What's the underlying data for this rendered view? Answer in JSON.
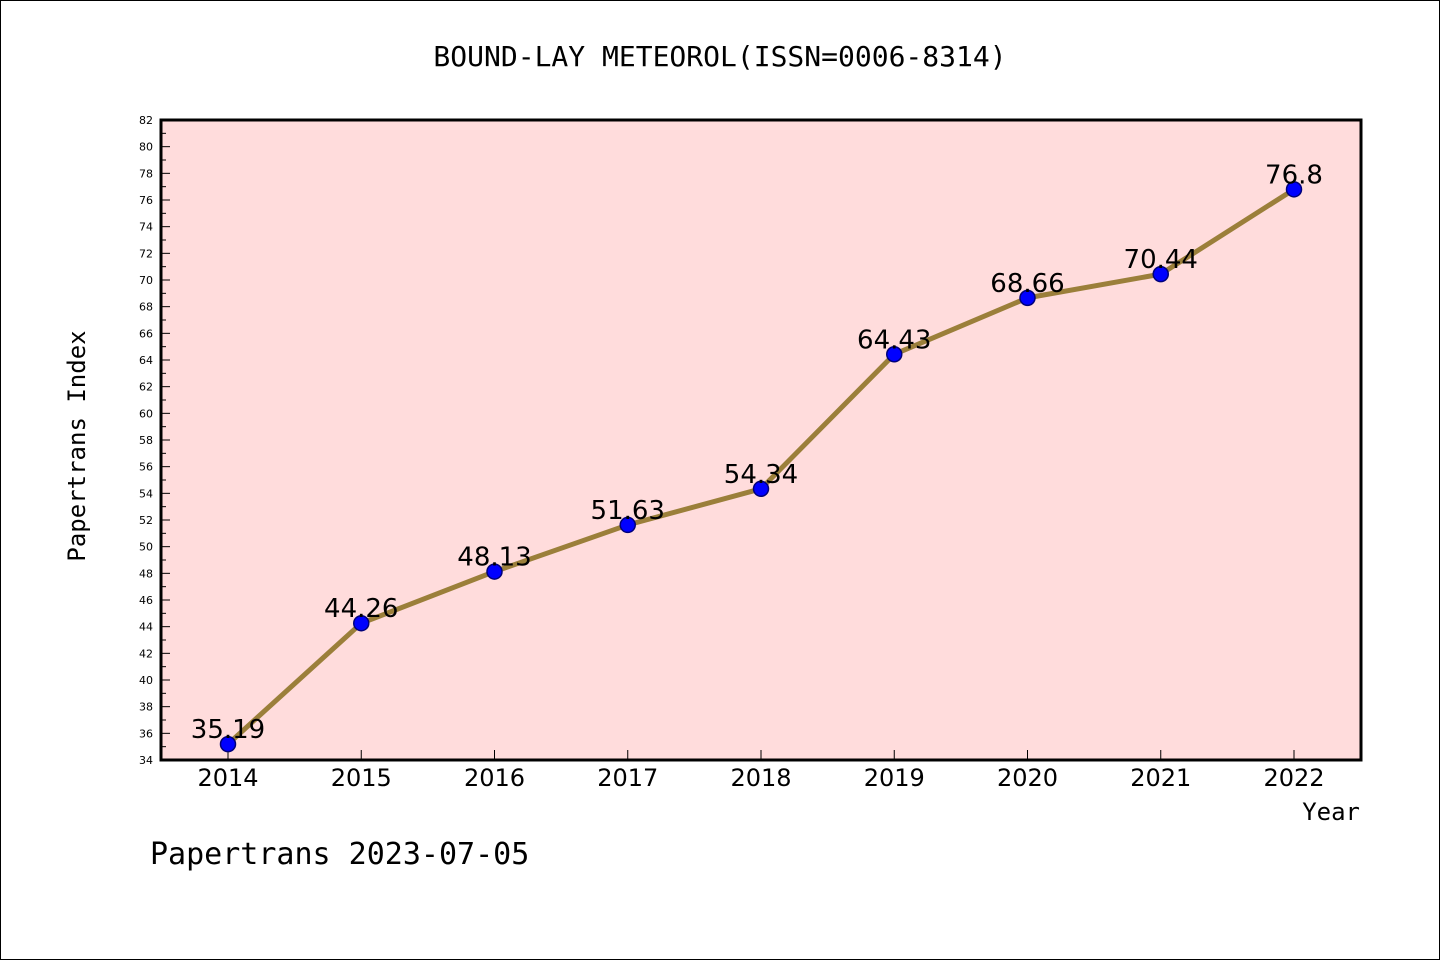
{
  "chart_data": {
    "type": "line",
    "title": "BOUND-LAY METEOROL(ISSN=0006-8314)",
    "xlabel": "Year",
    "ylabel": "Papertrans Index",
    "categories": [
      "2014",
      "2015",
      "2016",
      "2017",
      "2018",
      "2019",
      "2020",
      "2021",
      "2022"
    ],
    "values": [
      35.19,
      44.26,
      48.13,
      51.63,
      54.34,
      64.43,
      68.66,
      70.44,
      76.8
    ],
    "data_labels": [
      "35.19",
      "44.26",
      "48.13",
      "51.63",
      "54.34",
      "64.43",
      "68.66",
      "70.44",
      "76.8"
    ],
    "ylim": [
      34,
      82
    ],
    "yticks": [
      34,
      36,
      38,
      40,
      42,
      44,
      46,
      48,
      50,
      52,
      54,
      56,
      58,
      60,
      62,
      64,
      66,
      68,
      70,
      72,
      74,
      76,
      78,
      80,
      82
    ],
    "grid": false,
    "colors": {
      "plot_background": "#ffdcdc",
      "line": "#9b7f3a",
      "marker_fill": "#0000ff",
      "marker_edge": "#00007a"
    }
  },
  "footer": {
    "text": "Papertrans 2023-07-05"
  }
}
